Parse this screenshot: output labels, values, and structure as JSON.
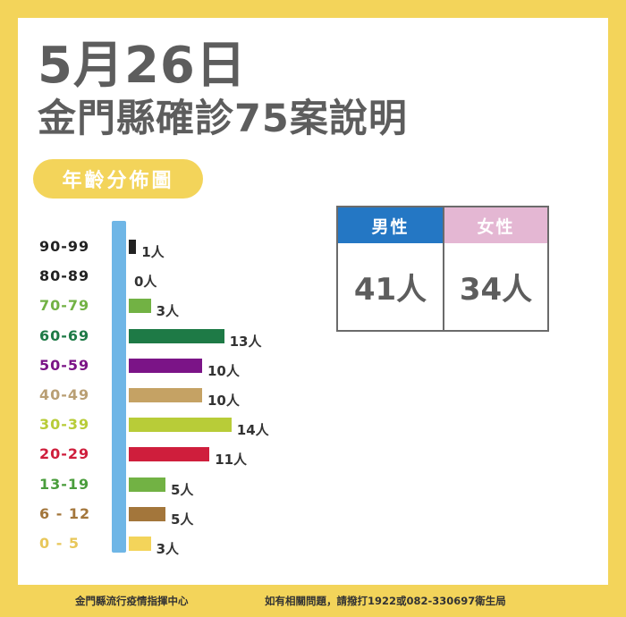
{
  "title_date": "5月26日",
  "title_main": "金門縣確診75案說明",
  "section_label": "年齡分佈圖",
  "chart_data": {
    "type": "bar",
    "orientation": "horizontal",
    "title": "年齡分佈圖",
    "categories": [
      "90-99",
      "80-89",
      "70-79",
      "60-69",
      "50-59",
      "40-49",
      "30-39",
      "20-29",
      "13-19",
      "6 - 12",
      "0 - 5"
    ],
    "values": [
      1,
      0,
      3,
      13,
      10,
      10,
      14,
      11,
      5,
      5,
      3
    ],
    "value_labels": [
      "1人",
      "0人",
      "3人",
      "13人",
      "10人",
      "10人",
      "14人",
      "11人",
      "5人",
      "5人",
      "3人"
    ],
    "colors": [
      "#222222",
      "#222222",
      "#72b244",
      "#1e7a46",
      "#7b1487",
      "#c5a264",
      "#b8cc38",
      "#cf1e3c",
      "#72b244",
      "#a3763b",
      "#f3d45a"
    ],
    "label_colors": [
      "#222222",
      "#222222",
      "#72b244",
      "#1e7a46",
      "#7b1487",
      "#b99f74",
      "#b8cc38",
      "#cf1e3c",
      "#4a9d3c",
      "#a3763b",
      "#e8c75a"
    ]
  },
  "gender_table": {
    "male_label": "男性",
    "female_label": "女性",
    "male_value": "41人",
    "female_value": "34人",
    "male_color": "#2477c4",
    "female_color": "#e4b7d3"
  },
  "footer": {
    "org": "金門縣流行疫情指揮中心",
    "contact": "如有相關問題，請撥打1922或082-330697衛生局"
  }
}
